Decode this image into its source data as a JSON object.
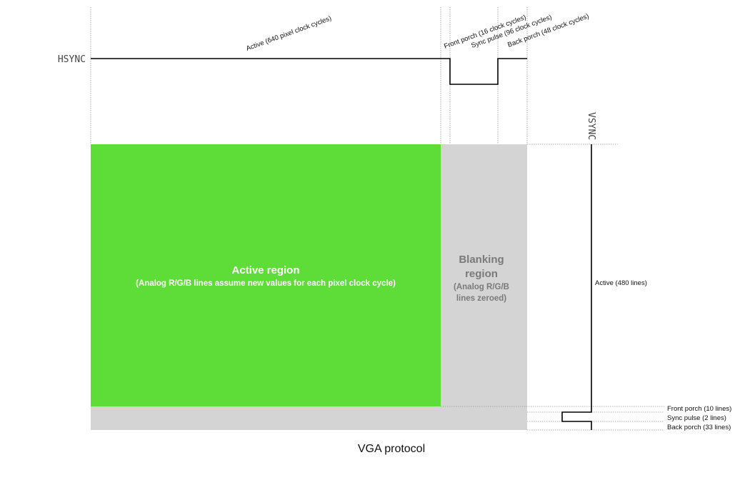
{
  "title": "VGA protocol",
  "hsync": {
    "label": "HSYNC",
    "active": "Active (640 pixel clock cycles)",
    "front_porch": "Front porch (16 clock cycles)",
    "sync_pulse": "Sync pulse (96 clock cycles)",
    "back_porch": "Back porch (48 clock cycles)"
  },
  "vsync": {
    "label": "VSYNC",
    "active": "Active (480 lines)",
    "front_porch": "Front porch (10 lines)",
    "sync_pulse": "Sync pulse (2 lines)",
    "back_porch": "Back porch (33 lines)"
  },
  "active_region": {
    "title": "Active region",
    "subtitle": "(Analog R/G/B lines assume new values for each pixel clock cycle)"
  },
  "blanking_region": {
    "line1": "Blanking",
    "line2": "region",
    "line3": "(Analog R/G/B",
    "line4": "lines zeroed)"
  },
  "colors": {
    "active": "#5edc38",
    "blanking": "#d4d4d4",
    "signal": "#000000",
    "guide": "#9a9a9a"
  }
}
